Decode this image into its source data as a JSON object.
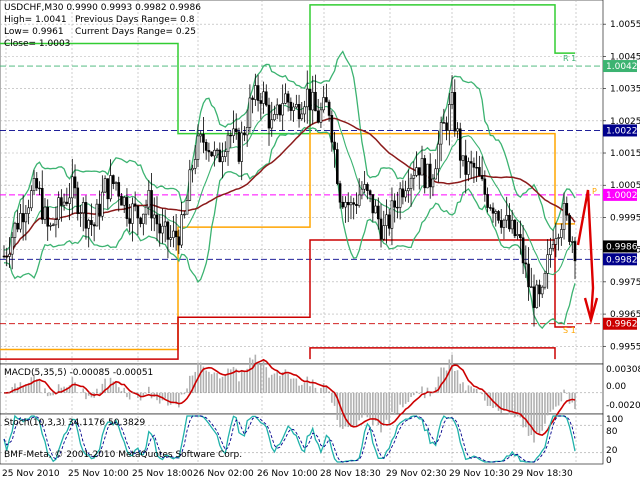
{
  "header": {
    "symbol_line": "USDCHF,M30  0.9990 0.9993 0.9982 0.9986",
    "high_line": "High= 1.0041",
    "low_line": "Low= 0.9961",
    "close_line": "Close= 1.0003",
    "prev_range": "Previous Days Range= 0.8",
    "curr_range": "Current Days Range= 0.25"
  },
  "price_axis": {
    "ticks": [
      "1.0055",
      "1.0045",
      "1.0035",
      "1.0025",
      "1.0015",
      "1.0005",
      "0.9995",
      "0.9985",
      "0.9975",
      "0.9965",
      "0.9955"
    ],
    "range": [
      0.99495,
      1.00625
    ]
  },
  "price_badges": [
    {
      "value": 1.0042,
      "label": "1.0042",
      "color": "#3cb371"
    },
    {
      "value": 1.0022,
      "label": "1.0022",
      "color": "#00008b"
    },
    {
      "value": 1.0002,
      "label": "1.0002",
      "color": "#ff00ff"
    },
    {
      "value": 0.9986,
      "label": "0.9986",
      "color": "#000000"
    },
    {
      "value": 0.9982,
      "label": "0.9982",
      "color": "#00008b"
    },
    {
      "value": 0.9962,
      "label": "0.9962",
      "color": "#cc0000"
    }
  ],
  "pivot_labels": {
    "r1": "R 1",
    "s1": "S 1",
    "p": "P"
  },
  "macd": {
    "title": "MACD(5,35,5) -0.00085 -0.00051",
    "ticks": [
      "0.00308",
      "0.00",
      "-0.00203"
    ],
    "range": [
      -0.0025,
      0.0034
    ]
  },
  "stoch": {
    "title": "Stoch(10,3,3) 34.1176 50.3829",
    "ticks": [
      "100",
      "80",
      "20",
      "0"
    ]
  },
  "copyright": "BMF-Meta, © 2001-2010 MetaQuotes Software Corp.",
  "time_axis": [
    "25 Nov 2010",
    "25 Nov 10:00",
    "25 Nov 18:00",
    "26 Nov 02:00",
    "26 Nov 10:00",
    "28 Nov 18:30",
    "29 Nov 02:30",
    "29 Nov 10:30",
    "29 Nov 18:30"
  ],
  "colors": {
    "candles": "#000000",
    "bollinger": "#3cb371",
    "ma": "#8b1a1a",
    "envelope_upper": "#32cd32",
    "range_orange": "#ffa500",
    "range_red": "#cc0000",
    "grid": "#b0b0b0",
    "macd_hist": "#b0b0b0",
    "macd_signal": "#cc0000",
    "stoch_main": "#20b2aa",
    "stoch_signal": "#00008b"
  },
  "chart_data": {
    "type": "candlestick",
    "symbol": "USDCHF",
    "timeframe": "M30",
    "ohlc_last": {
      "open": 0.999,
      "high": 0.9993,
      "low": 0.9982,
      "close": 0.9986
    },
    "price_series_approx": [
      0.9983,
      0.9992,
      1.0,
      1.0004,
      0.999,
      0.9998,
      1.0004,
      0.9998,
      0.9992,
      1.0004,
      1.0006,
      0.9998,
      0.9996,
      1.0,
      0.999,
      0.9988,
      0.9992,
      1.0015,
      1.002,
      1.0012,
      1.0022,
      1.0016,
      1.003,
      1.0034,
      1.0022,
      1.0033,
      1.0028,
      1.0034,
      1.0026,
      1.003,
      1.0003,
      0.9998,
      1.0004,
      0.9998,
      0.999,
      1.0,
      1.0008,
      1.0012,
      1.0006,
      1.002,
      1.003,
      1.001,
      1.001,
      1.0002,
      0.9998,
      0.9992,
      0.9988,
      0.9972,
      0.9968,
      0.999,
      0.9996,
      0.9986
    ],
    "levels": {
      "r1": 1.0042,
      "pivot_upper": 1.0022,
      "pivot": 1.0002,
      "current": 0.9986,
      "pivot_lower": 0.9982,
      "s1": 0.9962
    }
  }
}
